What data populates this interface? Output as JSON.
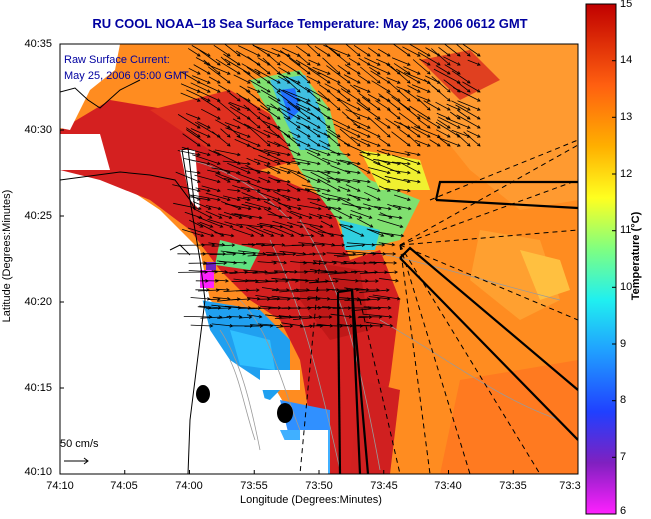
{
  "title": "RU COOL  NOAA–18  Sea Surface Temperature:  May 25, 2006 0612 GMT",
  "legend": {
    "line1": "Raw Surface Current:",
    "line2": "May 25, 2006 05:00 GMT"
  },
  "scale_label": "50 cm/s",
  "axes": {
    "x_title": "Longitude (Degrees:Minutes)",
    "y_title": "Latitude (Degrees:Minutes)",
    "x_ticks": [
      "74:10",
      "74:05",
      "74:00",
      "73:55",
      "73:50",
      "73:45",
      "73:40",
      "73:35",
      "73:3"
    ],
    "y_ticks": [
      "40:35",
      "40:30",
      "40:25",
      "40:20",
      "40:15",
      "40:10"
    ]
  },
  "colorbar": {
    "title": "Temperature (°C)",
    "ticks": [
      "15",
      "14",
      "13",
      "12",
      "11",
      "10",
      "9",
      "8",
      "7",
      "6"
    ],
    "range": [
      6,
      15
    ]
  },
  "colors": {
    "title": "#0000a0",
    "warm": "#d42020",
    "cool": "#20c0ff"
  }
}
